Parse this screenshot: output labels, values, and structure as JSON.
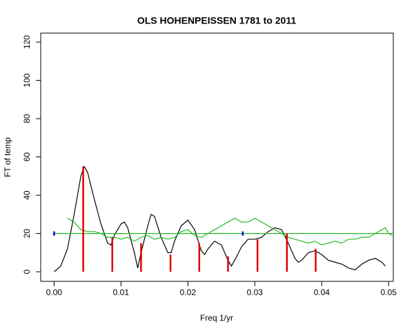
{
  "chart_data": {
    "type": "line",
    "title": "OLS HOHENPEISSEN 1781 to 2011",
    "xlabel": "Freq 1/yr",
    "ylabel": "FT of temp",
    "xlim": [
      -0.002,
      0.0507
    ],
    "ylim": [
      -5,
      124.7
    ],
    "xticks": [
      {
        "value": 0,
        "label": "0.00"
      },
      0.01,
      0.02,
      0.03,
      0.04,
      0.05
    ],
    "yticks": [
      0,
      20,
      40,
      60,
      80,
      100,
      120
    ],
    "series": [
      {
        "style": "line",
        "color": "#000000",
        "x": [
          0,
          0.001,
          0.002,
          0.003,
          0.004,
          0.0045,
          0.005,
          0.006,
          0.007,
          0.008,
          0.0085,
          0.009,
          0.01,
          0.0105,
          0.011,
          0.012,
          0.0125,
          0.013,
          0.014,
          0.0145,
          0.015,
          0.016,
          0.017,
          0.0175,
          0.018,
          0.019,
          0.02,
          0.021,
          0.022,
          0.0225,
          0.023,
          0.024,
          0.025,
          0.026,
          0.0265,
          0.027,
          0.028,
          0.029,
          0.03,
          0.031,
          0.032,
          0.033,
          0.034,
          0.035,
          0.036,
          0.0365,
          0.037,
          0.038,
          0.039,
          0.04,
          0.041,
          0.042,
          0.043,
          0.044,
          0.045,
          0.046,
          0.047,
          0.048,
          0.049,
          0.0495
        ],
        "values": [
          0,
          3,
          12,
          30,
          50,
          55,
          52,
          38,
          25,
          15,
          14,
          19,
          25,
          26,
          23,
          10,
          2,
          10,
          24,
          30,
          29,
          18,
          10,
          10,
          16,
          24,
          27,
          22,
          11,
          9,
          12,
          16,
          14,
          6,
          3,
          6,
          13,
          17,
          17,
          18,
          21,
          23,
          22,
          15,
          7,
          5,
          6,
          10,
          11,
          9,
          6,
          5,
          4,
          2,
          1,
          4,
          6,
          7,
          5,
          3
        ]
      },
      {
        "style": "line",
        "color": "#22bb22",
        "x": [
          0.002,
          0.0025,
          0.003,
          0.004,
          0.005,
          0.006,
          0.007,
          0.008,
          0.009,
          0.01,
          0.011,
          0.012,
          0.013,
          0.014,
          0.015,
          0.016,
          0.017,
          0.018,
          0.019,
          0.02,
          0.021,
          0.022,
          0.023,
          0.024,
          0.025,
          0.026,
          0.027,
          0.028,
          0.029,
          0.03,
          0.031,
          0.032,
          0.033,
          0.034,
          0.035,
          0.036,
          0.037,
          0.038,
          0.039,
          0.04,
          0.041,
          0.042,
          0.043,
          0.044,
          0.045,
          0.046,
          0.047,
          0.048,
          0.049,
          0.0495,
          0.05,
          0.0505
        ],
        "values": [
          28,
          27,
          26,
          22,
          21,
          21,
          20,
          18,
          18,
          17,
          18,
          16,
          18,
          19,
          17,
          18,
          17,
          18,
          21,
          22,
          19,
          18,
          20,
          22,
          24,
          26,
          28,
          26,
          26,
          28,
          26,
          24,
          22,
          20,
          18,
          17,
          16,
          15,
          16,
          14,
          15,
          16,
          15,
          17,
          17,
          18,
          18,
          20,
          22,
          23,
          20,
          19
        ]
      },
      {
        "style": "line",
        "color": "#22bb22",
        "x": [
          0,
          0.0507
        ],
        "values": [
          20,
          20
        ]
      },
      {
        "style": "spikes",
        "color": "#dd0000",
        "x": [
          0.00435,
          0.0087,
          0.013,
          0.0174,
          0.0217,
          0.026,
          0.0304,
          0.0348,
          0.0391
        ],
        "values": [
          55,
          18,
          15,
          9,
          15,
          8,
          17,
          20,
          12
        ]
      },
      {
        "style": "points",
        "color": "#0000ee",
        "x": [
          0,
          0.0282
        ],
        "values": [
          20,
          20
        ]
      }
    ]
  }
}
